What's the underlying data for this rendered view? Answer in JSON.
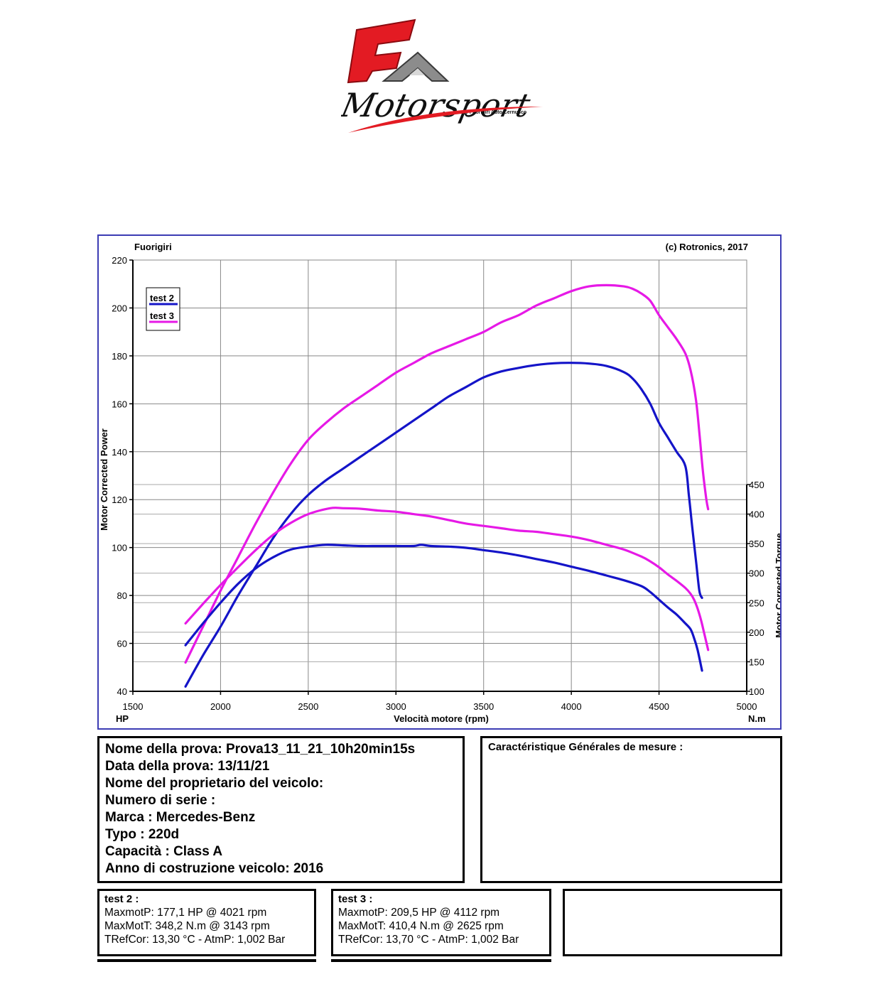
{
  "logo": {
    "brand_letters": "FA",
    "brand_name": "Motorsport",
    "brand_tagline": "By Fuorigiri Auto Cernusco"
  },
  "chart_header": {
    "left": "Fuorigiri",
    "right": "(c) Rotronics, 2017"
  },
  "chart_data": {
    "type": "line",
    "xlabel": "Velocità motore (rpm)",
    "x_unit_left": "HP",
    "x_unit_right": "N.m",
    "ylabel": "Motor Corrected Power",
    "y2label": "Motor Corrected Torque",
    "xlim": [
      1500,
      5000
    ],
    "ylim": [
      40,
      220
    ],
    "y2lim": [
      100,
      450
    ],
    "x_ticks": [
      1500,
      2000,
      2500,
      3000,
      3500,
      4000,
      4500,
      5000
    ],
    "y_ticks": [
      40,
      60,
      80,
      100,
      120,
      140,
      160,
      180,
      200,
      220
    ],
    "y2_ticks": [
      100,
      150,
      200,
      250,
      300,
      350,
      400,
      450
    ],
    "grid": true,
    "legend_position": "top-left",
    "series": [
      {
        "name": "test 2",
        "color": "#1414c8",
        "axis": "power",
        "x": [
          1800,
          1900,
          2000,
          2100,
          2200,
          2300,
          2400,
          2500,
          2600,
          2700,
          2800,
          2900,
          3000,
          3100,
          3200,
          3300,
          3400,
          3500,
          3600,
          3700,
          3800,
          3900,
          4000,
          4100,
          4200,
          4300,
          4350,
          4400,
          4450,
          4500,
          4550,
          4600,
          4650,
          4670,
          4690,
          4710,
          4730,
          4745
        ],
        "y": [
          42,
          55,
          67,
          80,
          92,
          104,
          114,
          122,
          128,
          133,
          138,
          143,
          148,
          153,
          158,
          163,
          167,
          171,
          173.5,
          175,
          176.2,
          176.9,
          177.1,
          176.8,
          175.8,
          173.2,
          170.5,
          166,
          160,
          152,
          146,
          140,
          134,
          122,
          108,
          95,
          82,
          79
        ]
      },
      {
        "name": "test 3",
        "color": "#e619e6",
        "axis": "power",
        "x": [
          1800,
          1900,
          2000,
          2100,
          2200,
          2300,
          2400,
          2500,
          2600,
          2700,
          2800,
          2900,
          3000,
          3100,
          3200,
          3300,
          3400,
          3500,
          3600,
          3700,
          3800,
          3900,
          4000,
          4100,
          4200,
          4300,
          4350,
          4400,
          4450,
          4500,
          4550,
          4600,
          4650,
          4680,
          4710,
          4730,
          4750,
          4770,
          4780
        ],
        "y": [
          52,
          67,
          82,
          96,
          110,
          123,
          135,
          145,
          152,
          158,
          163,
          168,
          173,
          177,
          181,
          184,
          187,
          190,
          194,
          197,
          201,
          204,
          207,
          209,
          209.5,
          209,
          208,
          206,
          203,
          197,
          192,
          187,
          181,
          174,
          162,
          148,
          132,
          120,
          116
        ]
      },
      {
        "name": "test 2",
        "color": "#1414c8",
        "axis": "torque",
        "x": [
          1800,
          1900,
          2000,
          2100,
          2200,
          2300,
          2400,
          2500,
          2600,
          2700,
          2800,
          2900,
          3000,
          3100,
          3143,
          3200,
          3300,
          3400,
          3500,
          3600,
          3700,
          3800,
          3900,
          4000,
          4100,
          4200,
          4300,
          4400,
          4450,
          4500,
          4550,
          4600,
          4650,
          4680,
          4700,
          4720,
          4745
        ],
        "y": [
          178,
          215,
          250,
          282,
          308,
          327,
          340,
          345,
          348,
          347,
          346,
          346,
          346,
          346,
          348,
          346,
          345,
          343,
          339,
          335,
          330,
          324,
          318,
          311,
          304,
          296,
          288,
          278,
          268,
          255,
          242,
          230,
          215,
          205,
          190,
          170,
          135
        ]
      },
      {
        "name": "test 3",
        "color": "#e619e6",
        "axis": "torque",
        "x": [
          1800,
          1900,
          2000,
          2100,
          2200,
          2300,
          2400,
          2500,
          2625,
          2700,
          2800,
          2900,
          3000,
          3100,
          3200,
          3300,
          3400,
          3500,
          3600,
          3700,
          3800,
          3900,
          4000,
          4100,
          4200,
          4300,
          4400,
          4450,
          4500,
          4550,
          4600,
          4650,
          4680,
          4700,
          4720,
          4740,
          4760,
          4780
        ],
        "y": [
          215,
          248,
          280,
          310,
          339,
          365,
          385,
          400,
          410,
          410,
          409,
          406,
          404,
          400,
          396,
          390,
          384,
          380,
          376,
          372,
          370,
          366,
          362,
          356,
          348,
          340,
          328,
          320,
          310,
          298,
          287,
          275,
          265,
          255,
          240,
          220,
          195,
          170
        ]
      }
    ]
  },
  "info": {
    "rows": [
      "Nome della prova: Prova13_11_21_10h20min15s",
      "Data della prova: 13/11/21",
      "Nome del proprietario del veicolo:",
      "Numero di serie  :",
      "Marca  : Mercedes-Benz",
      "Typo  : 220d",
      "Capacità  : Class A",
      "Anno di costruzione veicolo: 2016"
    ],
    "right_title": "Caractéristique Générales de mesure :"
  },
  "results": [
    {
      "title": "test 2 :",
      "maxpower": "MaxmotP: 177,1 HP @ 4021 rpm",
      "maxtorque": "MaxMotT: 348,2 N.m @ 3143 rpm",
      "conditions": "TRefCor: 13,30 °C - AtmP: 1,002 Bar"
    },
    {
      "title": "test 3 :",
      "maxpower": "MaxmotP: 209,5 HP @ 4112 rpm",
      "maxtorque": "MaxMotT: 410,4 N.m @ 2625 rpm",
      "conditions": "TRefCor: 13,70 °C - AtmP: 1,002 Bar"
    }
  ]
}
